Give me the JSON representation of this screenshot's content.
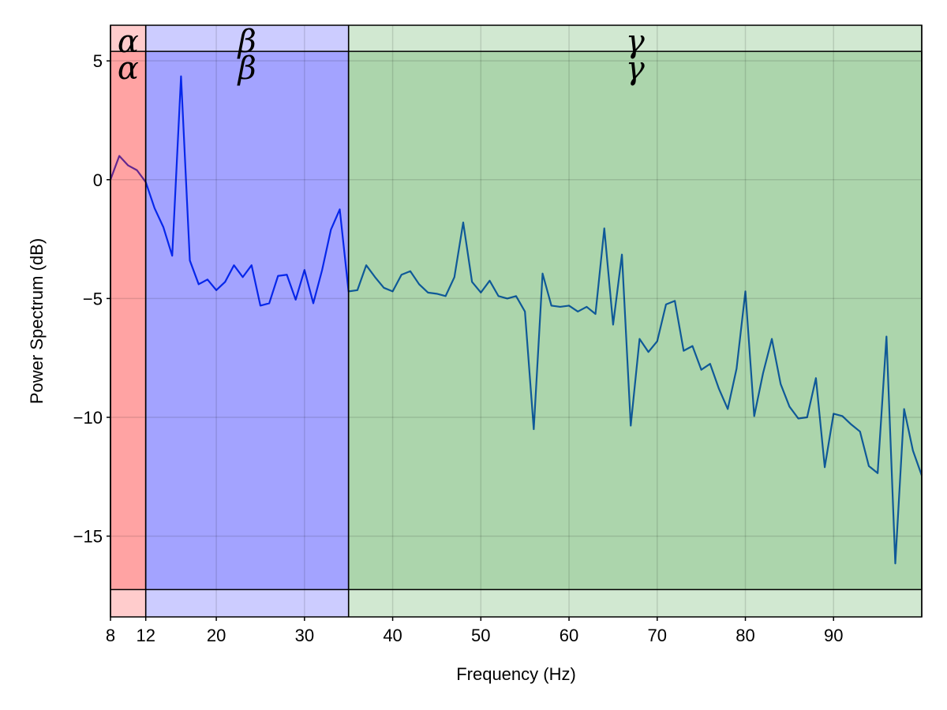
{
  "chart_data": {
    "type": "line",
    "x_label": "Frequency (Hz)",
    "y_label": "Power Spectrum (dB)",
    "xlim": [
      8,
      100
    ],
    "ylim": [
      -18.4,
      6.5
    ],
    "xticks": [
      8,
      12,
      20,
      30,
      40,
      50,
      60,
      70,
      80,
      90
    ],
    "yticks": [
      {
        "value": -15,
        "label": "−15"
      },
      {
        "value": -10,
        "label": "−10"
      },
      {
        "value": -5,
        "label": "−5"
      },
      0,
      5
    ],
    "grid": true,
    "band_ylim": [
      -17.25,
      5.4
    ],
    "bands": [
      {
        "name": "α",
        "range": [
          8,
          12
        ],
        "color": "#ff0000"
      },
      {
        "name": "β",
        "range": [
          12,
          35
        ],
        "color": "#0000ff"
      },
      {
        "name": "γ",
        "range": [
          35,
          100
        ],
        "color": "#1a8a1a"
      }
    ],
    "x": [
      8,
      9,
      10,
      11,
      12,
      13,
      14,
      15,
      16,
      17,
      18,
      19,
      20,
      21,
      22,
      23,
      24,
      25,
      26,
      27,
      28,
      29,
      30,
      31,
      32,
      33,
      34,
      35,
      36,
      37,
      38,
      39,
      40,
      41,
      42,
      43,
      44,
      45,
      46,
      47,
      48,
      49,
      50,
      51,
      52,
      53,
      54,
      55,
      56,
      57,
      58,
      59,
      60,
      61,
      62,
      63,
      64,
      65,
      66,
      67,
      68,
      69,
      70,
      71,
      72,
      73,
      74,
      75,
      76,
      77,
      78,
      79,
      80,
      81,
      82,
      83,
      84,
      85,
      86,
      87,
      88,
      89,
      90,
      91,
      92,
      93,
      94,
      95,
      96,
      97,
      98,
      99,
      100
    ],
    "series": [
      {
        "color": "#0a3ee0",
        "values": [
          0,
          1.0,
          0.6,
          0.4,
          -0.1,
          -1.2,
          -2.0,
          -3.2,
          4.35,
          -3.4,
          -4.4,
          -4.2,
          -4.65,
          -4.3,
          -3.6,
          -4.1,
          -3.6,
          -5.3,
          -5.2,
          -4.05,
          -4.0,
          -5.05,
          -3.8,
          -5.2,
          -3.8,
          -2.1,
          -1.25,
          -4.7,
          -4.65,
          -3.6,
          -4.1,
          -4.55,
          -4.7,
          -4.0,
          -3.85,
          -4.4,
          -4.75,
          -4.8,
          -4.9,
          -4.1,
          -1.8,
          -4.3,
          -4.75,
          -4.25,
          -4.9,
          -5.0,
          -4.9,
          -5.55,
          -10.5,
          -3.95,
          -5.3,
          -5.35,
          -5.3,
          -5.55,
          -5.35,
          -5.65,
          -2.05,
          -6.1,
          -3.15,
          -10.35,
          -6.7,
          -7.25,
          -6.8,
          -5.25,
          -5.1,
          -7.2,
          -7.0,
          -8.0,
          -7.75,
          -8.8,
          -9.65,
          -7.95,
          -4.7,
          -9.95,
          -8.15,
          -6.7,
          -8.6,
          -9.55,
          -10.05,
          -10.0,
          -8.35,
          -12.1,
          -9.85,
          -9.95,
          -10.3,
          -10.6,
          -12.05,
          -12.35,
          -6.6,
          -16.15,
          -9.65,
          -11.4,
          -12.45
        ]
      }
    ]
  }
}
